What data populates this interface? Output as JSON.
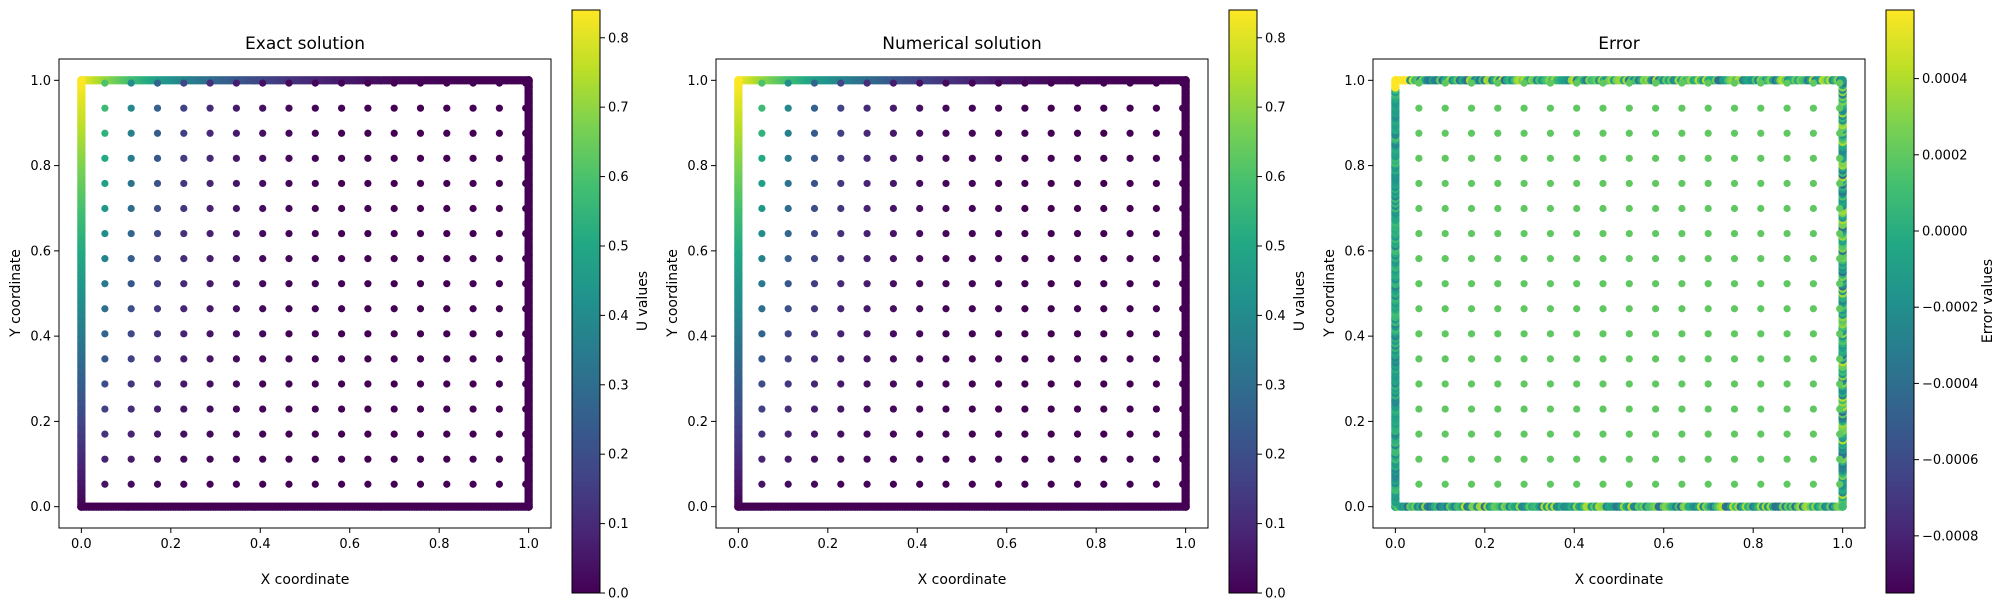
{
  "chart_data": [
    {
      "type": "scatter",
      "title": "Exact solution",
      "xlabel": "X coordinate",
      "ylabel": "Y coordinate",
      "xlim": [
        -0.05,
        1.05
      ],
      "ylim": [
        -0.05,
        1.05
      ],
      "xticks": [
        "0.0",
        "0.2",
        "0.4",
        "0.6",
        "0.8",
        "1.0"
      ],
      "yticks": [
        "0.0",
        "0.2",
        "0.4",
        "0.6",
        "0.8",
        "1.0"
      ],
      "colormap": "viridis",
      "colorbar": {
        "label": "U values",
        "range": [
          0.0,
          0.84
        ],
        "ticks": [
          "0.0",
          "0.1",
          "0.2",
          "0.3",
          "0.4",
          "0.5",
          "0.6",
          "0.7",
          "0.8"
        ]
      },
      "interior_grid": {
        "count": 17,
        "start": 0.0526,
        "step": 0.0588
      },
      "boundary_value_range": [
        0.0,
        0.84
      ],
      "grid": false
    },
    {
      "type": "scatter",
      "title": "Numerical solution",
      "xlabel": "X coordinate",
      "ylabel": "Y coordinate",
      "xlim": [
        -0.05,
        1.05
      ],
      "ylim": [
        -0.05,
        1.05
      ],
      "xticks": [
        "0.0",
        "0.2",
        "0.4",
        "0.6",
        "0.8",
        "1.0"
      ],
      "yticks": [
        "0.0",
        "0.2",
        "0.4",
        "0.6",
        "0.8",
        "1.0"
      ],
      "colormap": "viridis",
      "colorbar": {
        "label": "U values",
        "range": [
          0.0,
          0.84
        ],
        "ticks": [
          "0.0",
          "0.1",
          "0.2",
          "0.3",
          "0.4",
          "0.5",
          "0.6",
          "0.7",
          "0.8"
        ]
      },
      "interior_grid": {
        "count": 17,
        "start": 0.0526,
        "step": 0.0588
      },
      "boundary_value_range": [
        0.0,
        0.84
      ],
      "grid": false
    },
    {
      "type": "scatter",
      "title": "Error",
      "xlabel": "X coordinate",
      "ylabel": "Y coordinate",
      "xlim": [
        -0.05,
        1.05
      ],
      "ylim": [
        -0.05,
        1.05
      ],
      "xticks": [
        "0.0",
        "0.2",
        "0.4",
        "0.6",
        "0.8",
        "1.0"
      ],
      "yticks": [
        "0.0",
        "0.2",
        "0.4",
        "0.6",
        "0.8",
        "1.0"
      ],
      "colormap": "viridis",
      "colorbar": {
        "label": "Error values",
        "range": [
          -0.00095,
          0.00058
        ],
        "ticks": [
          "0.0004",
          "0.0002",
          "0.0000",
          "−0.0002",
          "−0.0004",
          "−0.0006",
          "−0.0008"
        ]
      },
      "interior_value": 0.0002,
      "grid": false
    }
  ]
}
